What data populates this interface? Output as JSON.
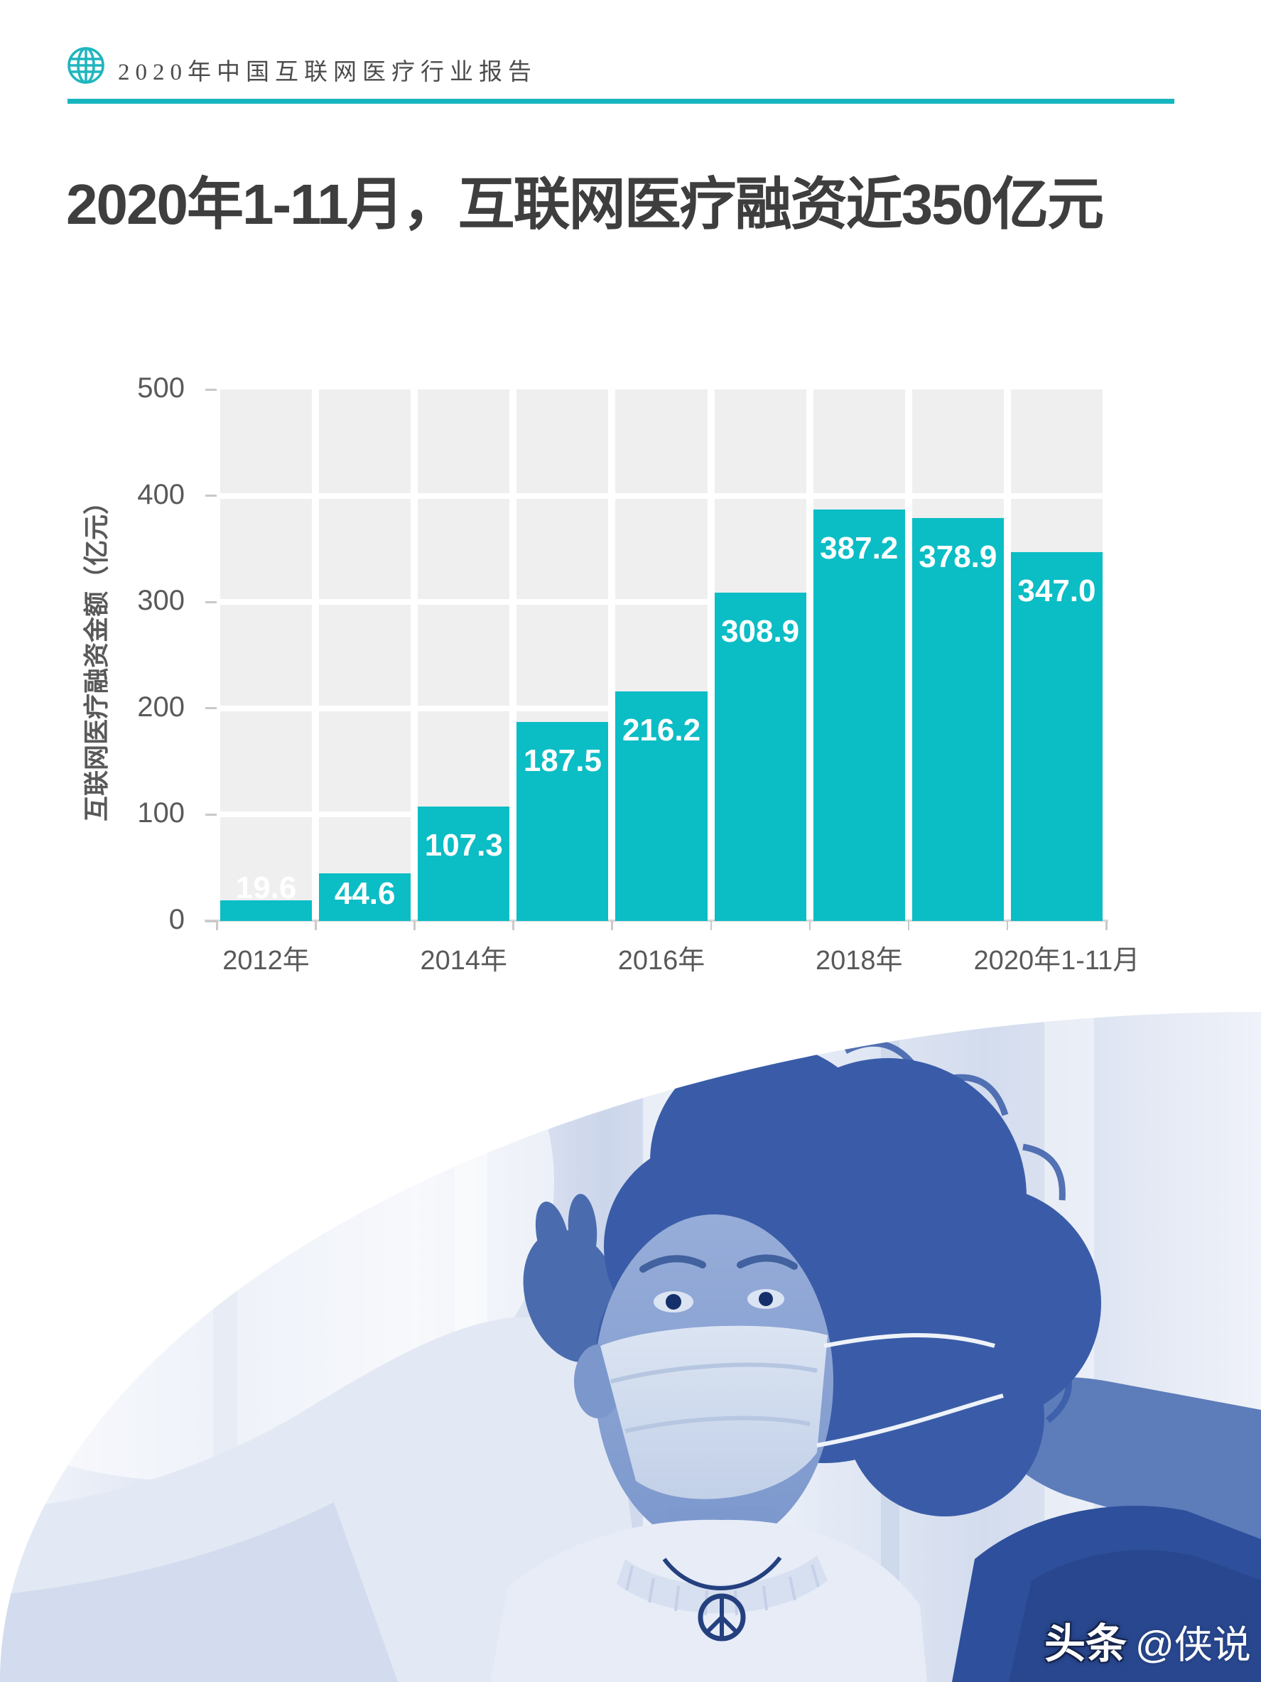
{
  "header": {
    "report_title": "2020年中国互联网医疗行业报告",
    "logo_icon": "globe-icon"
  },
  "page_title": "2020年1-11月，互联网医疗融资近350亿元",
  "chart_data": {
    "type": "bar",
    "title": "2020年1-11月，互联网医疗融资近350亿元",
    "ylabel": "互联网医疗融资金额（亿元）",
    "xlabel": "",
    "ylim": [
      0,
      500
    ],
    "y_ticks": [
      0,
      100,
      200,
      300,
      400,
      500
    ],
    "grid": "on",
    "legend": "none",
    "values": [
      19.6,
      44.6,
      107.3,
      187.5,
      216.2,
      308.9,
      387.2,
      378.9,
      347.0
    ],
    "bar_labels": [
      "19.6",
      "44.6",
      "107.3",
      "187.5",
      "216.2",
      "308.9",
      "387.2",
      "378.9",
      "347.0"
    ],
    "x_tick_labels": [
      {
        "col": 0,
        "label": "2012年"
      },
      {
        "col": 2,
        "label": "2014年"
      },
      {
        "col": 4,
        "label": "2016年"
      },
      {
        "col": 6,
        "label": "2018年"
      },
      {
        "col": 8,
        "label": "2020年1-11月"
      }
    ],
    "bar_color": "#0bbdc5",
    "plot_bg": "#efefef",
    "grid_color": "#ffffff",
    "axis_text_color": "#595959",
    "tick_color": "#c9c9c9"
  },
  "accent_colors": {
    "teal": "#17b5be",
    "title_text": "#3e3e3e",
    "photo_blue_dark": "#3a5ca8",
    "photo_blue_light": "#dfe6f3"
  },
  "watermark": {
    "brand": "头条",
    "handle": "@侠说"
  }
}
